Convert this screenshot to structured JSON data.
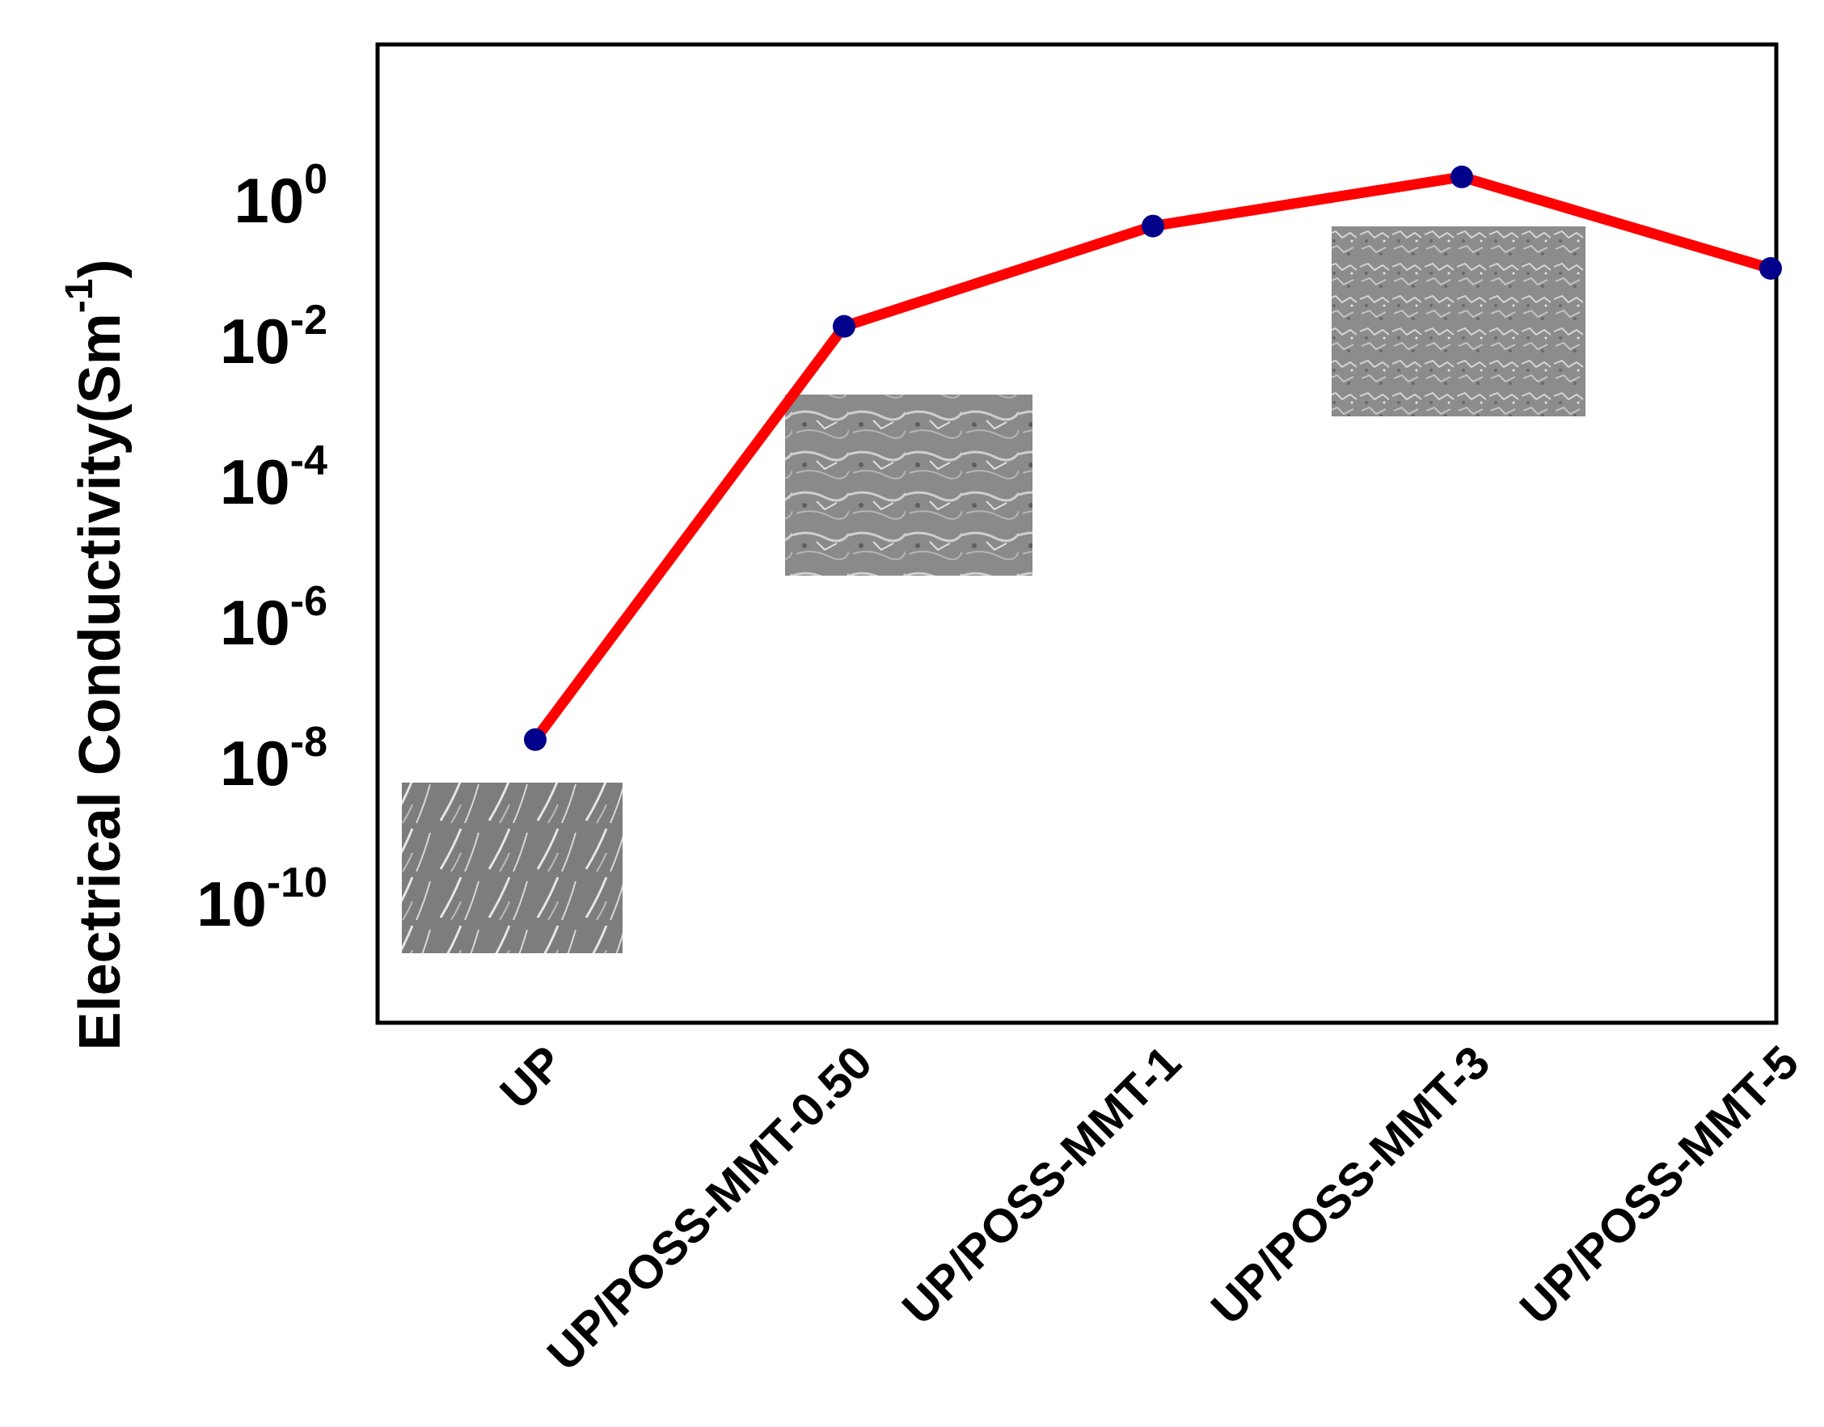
{
  "chart_data": {
    "type": "line",
    "ylabel_main": "Electrical Conductivity",
    "ylabel_unit_open": "(Sm",
    "ylabel_unit_exp": "-1",
    "ylabel_unit_close": ")",
    "yscale": "log",
    "ylim": [
      1e-12,
      100.0
    ],
    "y_ticks": [
      {
        "base": "10",
        "exp": "0",
        "value": 1
      },
      {
        "base": "10",
        "exp": "-2",
        "value": 0.01
      },
      {
        "base": "10",
        "exp": "-4",
        "value": 0.0001
      },
      {
        "base": "10",
        "exp": "-6",
        "value": 1e-06
      },
      {
        "base": "10",
        "exp": "-8",
        "value": 1e-08
      },
      {
        "base": "10",
        "exp": "-10",
        "value": 1e-10
      }
    ],
    "categories": [
      "UP",
      "UP/POSS-MMT-0.50",
      "UP/POSS-MMT-1",
      "UP/POSS-MMT-3",
      "UP/POSS-MMT-5"
    ],
    "series": [
      {
        "values": [
          2e-08,
          0.015,
          0.4,
          2.0,
          0.1
        ],
        "line_color": "#ff0000",
        "marker_color": "#00008b"
      }
    ],
    "insets": [
      {
        "category": "UP",
        "kind": "sem-micrograph-smooth"
      },
      {
        "category": "UP/POSS-MMT-0.50",
        "kind": "sem-micrograph-lamellar"
      },
      {
        "category": "UP/POSS-MMT-3",
        "kind": "sem-micrograph-rough"
      }
    ],
    "grid": false,
    "legend": "none"
  }
}
